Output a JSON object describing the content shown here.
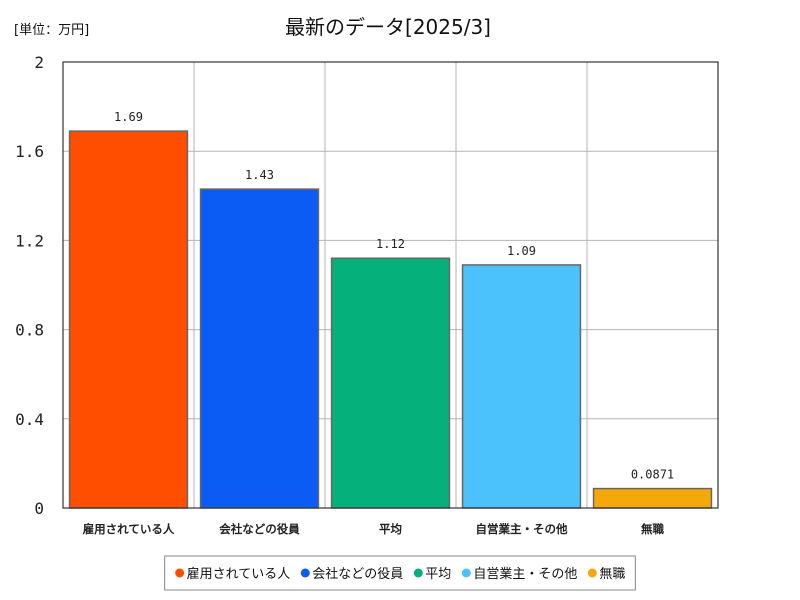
{
  "chart_data": {
    "type": "bar",
    "title": "最新のデータ[2025/3]",
    "unit_label": "[単位：万円]",
    "xlabel": "",
    "ylabel": "",
    "ylim": [
      0,
      2
    ],
    "yticks": [
      "0",
      "0.4",
      "0.8",
      "1.2",
      "1.6",
      "2"
    ],
    "yticks_values": [
      0,
      0.4,
      0.8,
      1.2,
      1.6,
      2
    ],
    "grid": true,
    "legend_position": "bottom",
    "categories": [
      "雇用されている人",
      "会社などの役員",
      "平均",
      "自営業主・その他",
      "無職"
    ],
    "values": [
      1.69,
      1.43,
      1.12,
      1.09,
      0.0871
    ],
    "data_labels": [
      "1.69",
      "1.43",
      "1.12",
      "1.09",
      "0.0871"
    ],
    "colors": [
      "#ff4e00",
      "#0a5cf5",
      "#05b07a",
      "#4cc2fd",
      "#f5a80c"
    ]
  }
}
